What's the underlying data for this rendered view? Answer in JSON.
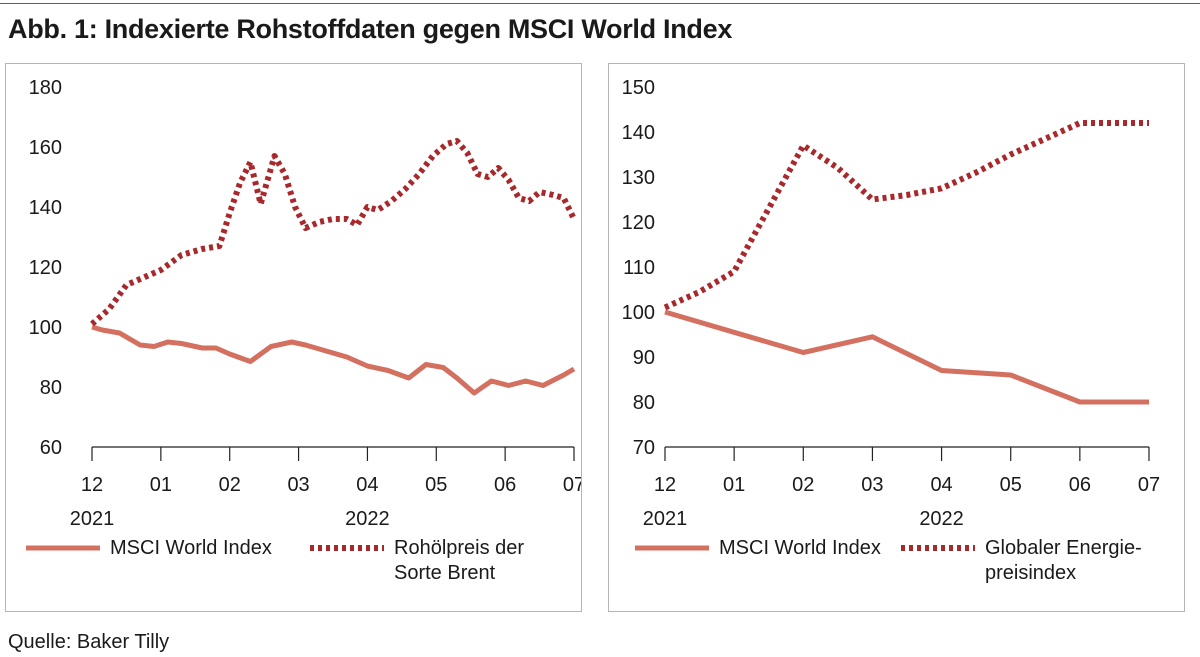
{
  "title": "Abb. 1: Indexierte Rohstoffdaten gegen MSCI World Index",
  "source": "Quelle: Baker Tilly",
  "colors": {
    "accent": "#c8323a",
    "msci": "#d37060",
    "brent": "#a8292c"
  },
  "chart_data": [
    {
      "type": "line",
      "xlim": [
        0,
        7
      ],
      "ylim": [
        60,
        180
      ],
      "yticks": [
        60,
        80,
        100,
        120,
        140,
        160,
        180
      ],
      "xtick_labels": [
        "12",
        "01",
        "02",
        "03",
        "04",
        "05",
        "06",
        "07"
      ],
      "year_labels": [
        {
          "label": "2021",
          "at": 0
        },
        {
          "label": "2022",
          "at": 4
        }
      ],
      "series": [
        {
          "name": "MSCI World Index",
          "style": "solid",
          "x": [
            0,
            0.15,
            0.4,
            0.7,
            0.9,
            1.1,
            1.3,
            1.6,
            1.8,
            2.0,
            2.3,
            2.6,
            2.9,
            3.1,
            3.4,
            3.7,
            4.0,
            4.3,
            4.6,
            4.85,
            5.1,
            5.3,
            5.55,
            5.8,
            6.05,
            6.3,
            6.55,
            6.85,
            7.0
          ],
          "y": [
            100,
            99,
            98,
            94,
            93.5,
            95,
            94.5,
            93,
            93,
            91,
            88.5,
            93.5,
            95,
            94,
            92,
            90,
            87,
            85.5,
            83,
            87.5,
            86.5,
            83,
            78,
            82,
            80.5,
            82,
            80.5,
            84,
            86
          ]
        },
        {
          "name": "Rohölpreis der Sorte Brent",
          "style": "dotted",
          "x": [
            0,
            0.25,
            0.5,
            0.7,
            1.0,
            1.3,
            1.6,
            1.85,
            2.0,
            2.15,
            2.3,
            2.45,
            2.65,
            2.8,
            2.95,
            3.1,
            3.3,
            3.5,
            3.7,
            3.85,
            4.0,
            4.15,
            4.35,
            4.55,
            4.75,
            4.95,
            5.15,
            5.3,
            5.45,
            5.6,
            5.75,
            5.9,
            6.05,
            6.2,
            6.35,
            6.5,
            6.7,
            6.85,
            7.0
          ],
          "y": [
            101,
            106,
            114,
            116,
            119,
            124,
            126,
            127,
            138,
            148,
            155,
            141,
            157,
            151,
            140,
            133,
            135,
            136,
            136,
            134,
            140,
            139,
            142,
            146,
            151,
            157,
            161,
            162,
            158,
            151,
            150,
            153,
            149,
            143,
            142,
            145,
            144,
            143,
            136
          ]
        }
      ]
    },
    {
      "type": "line",
      "xlim": [
        0,
        7
      ],
      "ylim": [
        70,
        150
      ],
      "yticks": [
        70,
        80,
        90,
        100,
        110,
        120,
        130,
        140,
        150
      ],
      "xtick_labels": [
        "12",
        "01",
        "02",
        "03",
        "04",
        "05",
        "06",
        "07"
      ],
      "year_labels": [
        {
          "label": "2021",
          "at": 0
        },
        {
          "label": "2022",
          "at": 4
        }
      ],
      "series": [
        {
          "name": "MSCI World Index",
          "style": "solid",
          "x": [
            0,
            1,
            2,
            3,
            4,
            5,
            6,
            7
          ],
          "y": [
            100,
            95.5,
            91,
            94.5,
            87,
            86,
            80,
            80
          ]
        },
        {
          "name": "Globaler Energie-preisindex",
          "style": "dotted",
          "x": [
            0,
            0.5,
            1,
            1.5,
            2,
            2.5,
            3,
            3.5,
            4,
            4.5,
            5,
            5.5,
            6,
            6.5,
            7
          ],
          "y": [
            101,
            104.5,
            109,
            123,
            137,
            132,
            125,
            126,
            127.5,
            131,
            135,
            138.5,
            142,
            142,
            142
          ]
        }
      ]
    }
  ],
  "legends": [
    {
      "items": [
        {
          "style": "solid",
          "lines": [
            "MSCI World Index"
          ]
        },
        {
          "style": "dotted",
          "lines": [
            "Rohölpreis der",
            "Sorte Brent"
          ]
        }
      ]
    },
    {
      "items": [
        {
          "style": "solid",
          "lines": [
            "MSCI World Index"
          ]
        },
        {
          "style": "dotted",
          "lines": [
            "Globaler Energie-",
            "preisindex"
          ]
        }
      ]
    }
  ]
}
